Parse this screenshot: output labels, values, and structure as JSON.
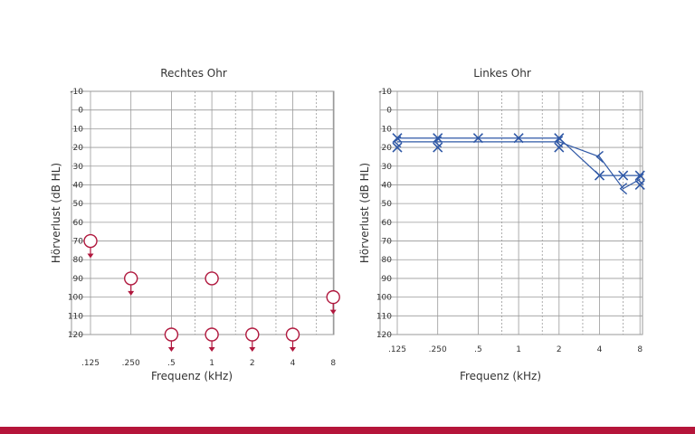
{
  "colors": {
    "right_ear": "#b0173d",
    "left_ear": "#2f58a6",
    "grid": "#9a9a9a",
    "text": "#333333",
    "accent_bar": "#b5153a"
  },
  "chart_data": [
    {
      "type": "scatter",
      "title": "Rechtes Ohr",
      "xlabel": "Frequenz (kHz)",
      "ylabel": "Hörverlust (dB HL)",
      "x_ticks": [
        ".125",
        ".250",
        ".5",
        "1",
        "2",
        "4",
        "8"
      ],
      "y_ticks": [
        "-10",
        "0",
        "10",
        "20",
        "30",
        "40",
        "50",
        "60",
        "70",
        "80",
        "90",
        "100",
        "110",
        "120"
      ],
      "ylim": [
        -10,
        120
      ],
      "y_inverted": true,
      "x_scale": "log2",
      "grid": true,
      "series": [
        {
          "marker": "circle-with-down-arrow",
          "points": [
            {
              "x": ".125",
              "y": 70
            },
            {
              "x": ".250",
              "y": 90
            },
            {
              "x": ".5",
              "y": 120
            },
            {
              "x": "1",
              "y": 120
            },
            {
              "x": "2",
              "y": 120
            },
            {
              "x": "4",
              "y": 120
            },
            {
              "x": "8",
              "y": 100
            }
          ]
        },
        {
          "marker": "circle",
          "points": [
            {
              "x": "1",
              "y": 90
            }
          ]
        }
      ]
    },
    {
      "type": "line",
      "title": "Linkes Ohr",
      "xlabel": "Frequenz (kHz)",
      "ylabel": "Hörverlust (dB HL)",
      "x_ticks": [
        ".125",
        ".250",
        ".5",
        "1",
        "2",
        "4",
        "8"
      ],
      "y_ticks": [
        "-10",
        "0",
        "10",
        "20",
        "30",
        "40",
        "50",
        "60",
        "70",
        "80",
        "90",
        "100",
        "110",
        "120"
      ],
      "ylim": [
        -10,
        120
      ],
      "y_inverted": true,
      "x_scale": "log2",
      "grid": true,
      "series": [
        {
          "marker": "x",
          "points": [
            {
              "x": ".125",
              "y": 15
            },
            {
              "x": ".250",
              "y": 15
            },
            {
              "x": ".5",
              "y": 15
            },
            {
              "x": "1",
              "y": 15
            },
            {
              "x": "2",
              "y": 15
            },
            {
              "x": "4",
              "y": 35
            },
            {
              "x": "6",
              "y": 35
            },
            {
              "x": "8",
              "y": 35
            }
          ]
        },
        {
          "marker": "x",
          "points": [
            {
              "x": ".125",
              "y": 20
            },
            {
              "x": ".250",
              "y": 20
            },
            {
              "x": "2",
              "y": 20
            },
            {
              "x": "8",
              "y": 40
            }
          ]
        },
        {
          "marker": "bone-conduction-bracket",
          "points": [
            {
              "x": ".125",
              "y": 17
            },
            {
              "x": ".250",
              "y": 17
            },
            {
              "x": "2",
              "y": 17
            },
            {
              "x": "4",
              "y": 25
            },
            {
              "x": "6",
              "y": 42
            },
            {
              "x": "8",
              "y": 37
            }
          ]
        }
      ]
    }
  ]
}
